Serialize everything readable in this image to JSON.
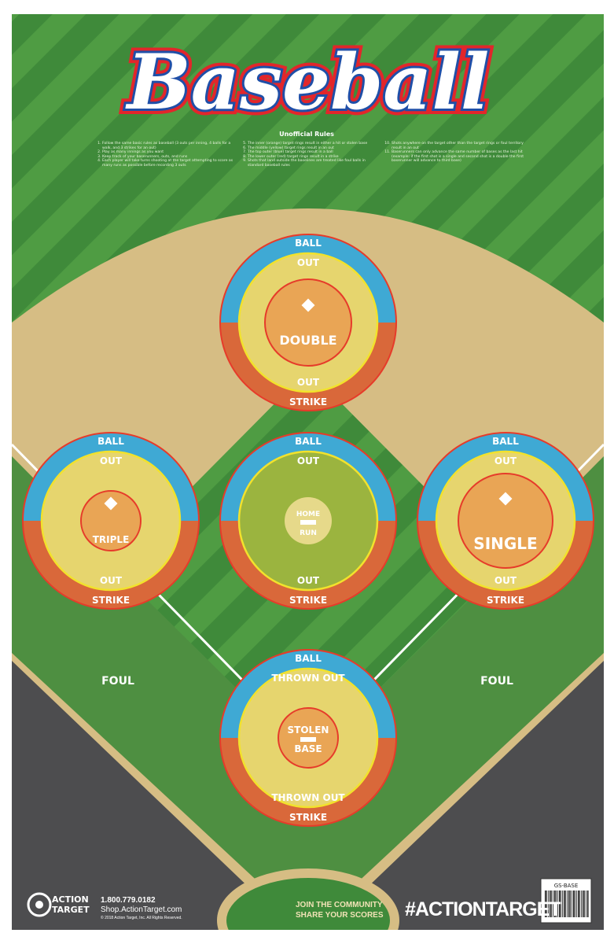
{
  "title": "Baseball",
  "rules": {
    "heading": "Unofficial Rules",
    "columns": [
      [
        "Follow the same basic rules as baseball (3 outs per inning, 4 balls for a walk, and 3 strikes for an out)",
        "Play as many innings as you want",
        "Keep track of your baserunners, outs, and runs",
        "Each player will take turns shooting at the target attempting to score as many runs as possible before recording 3 outs"
      ],
      [
        "The inner (orange) target rings result in either a hit or stolen base",
        "The middle (yellow) target rings result in an out",
        "The top outer (blue) target rings result in a ball",
        "The lower outer (red) target rings result in a strike",
        "Shots that land outside the baselines are treated like foul balls in standard baseball rules"
      ],
      [
        "Shots anywhere on the target other than the target rings or foul territory result in an out",
        "Baserunners can only advance the same number of bases as the last hit (example: if the first shot is a single and second shot is a double the first baserunner will advance to third base)"
      ]
    ]
  },
  "targets": [
    {
      "id": "double",
      "ball": "BALL",
      "out_top": "OUT",
      "center": "DOUBLE",
      "out_bottom": "OUT",
      "strike": "STRIKE"
    },
    {
      "id": "triple",
      "ball": "BALL",
      "out_top": "OUT",
      "center": "TRIPLE",
      "out_bottom": "OUT",
      "strike": "STRIKE"
    },
    {
      "id": "home-run",
      "ball": "BALL",
      "out_top": "OUT",
      "center": "HOME",
      "center2": "RUN",
      "out_bottom": "OUT",
      "strike": "STRIKE"
    },
    {
      "id": "single",
      "ball": "BALL",
      "out_top": "OUT",
      "center": "SINGLE",
      "out_bottom": "OUT",
      "strike": "STRIKE"
    },
    {
      "id": "stolen-base",
      "ball": "BALL",
      "out_top": "THROWN OUT",
      "center": "STOLEN",
      "center2": "BASE",
      "out_bottom": "THROWN OUT",
      "strike": "STRIKE"
    }
  ],
  "foul_left": "FOUL",
  "foul_right": "FOUL",
  "footer": {
    "brand": "ACTION TARGET",
    "phone": "1.800.779.0182",
    "website": "Shop.ActionTarget.com",
    "copyright": "© 2018 Action Target, Inc. All Rights Reserved.",
    "community_line1": "JOIN THE COMMUNITY",
    "community_line2": "SHARE YOUR SCORES",
    "hashtag": "#ACTIONTARGET",
    "product_code": "GS-BASE"
  },
  "colors": {
    "grass": "#3f8a3a",
    "grass_light": "#4f9c43",
    "dirt": "#d6bd84",
    "foul_area": "#4d4d4f",
    "ball_ring": "#3fa9d4",
    "strike_ring": "#d9683a",
    "out_ring": "#e6d56e",
    "hit_center": "#e9a555",
    "ring_red": "#e63b2a",
    "ring_yellow": "#f2e22c",
    "title_blue": "#1f4fa8",
    "title_red": "#e2262b"
  }
}
